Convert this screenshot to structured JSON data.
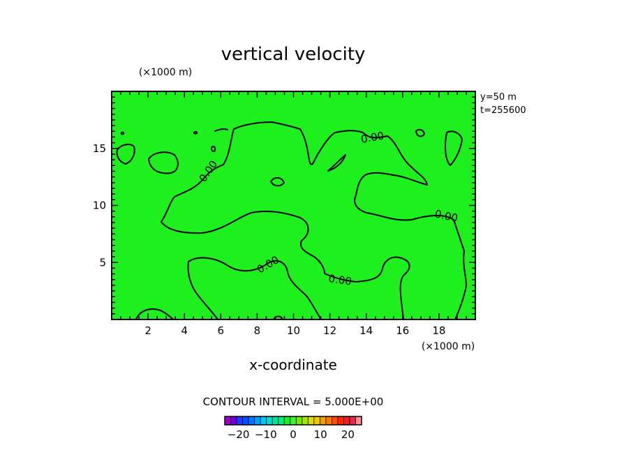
{
  "chart_data": {
    "type": "heatmap",
    "title": "vertical velocity",
    "xlabel": "x-coordinate",
    "x_unit_label": "(×1000 m)",
    "y_unit_label": "(×1000 m)",
    "xlim": [
      0,
      20
    ],
    "ylim": [
      0,
      20
    ],
    "x_ticks": [
      2,
      4,
      6,
      8,
      10,
      12,
      14,
      16,
      18
    ],
    "x_tick_labels": [
      "2",
      "4",
      "6",
      "8",
      "10",
      "12",
      "14",
      "16",
      "18"
    ],
    "y_ticks": [
      5,
      10,
      15
    ],
    "y_tick_labels": [
      "5",
      "10",
      "15"
    ],
    "annotations": [
      "y=50  m",
      "t=255600"
    ],
    "contour_labels": [
      "0.00",
      "0.00",
      "0.00",
      "0.00",
      "0.00"
    ],
    "contour_interval_text": "CONTOUR INTERVAL = 5.000E+00",
    "field_color": "#1ef01e",
    "contour_color": "#000000",
    "colorbar": {
      "range": [
        -25,
        25
      ],
      "ticks": [
        -20,
        -10,
        0,
        10,
        20
      ],
      "tick_labels": [
        "−20",
        "−10",
        "0",
        "10",
        "20"
      ],
      "colors": [
        "#a000c8",
        "#6e00dc",
        "#1e3cff",
        "#0050ff",
        "#0078ff",
        "#00a0ff",
        "#00c8ff",
        "#00dcc8",
        "#00e6a0",
        "#00f078",
        "#1ef01e",
        "#3cf03c",
        "#78e600",
        "#a0e600",
        "#dcdc00",
        "#f0c800",
        "#f0a000",
        "#ff7800",
        "#ff5000",
        "#ff2800",
        "#f01e1e",
        "#e62850",
        "#ff8c8c"
      ]
    }
  }
}
